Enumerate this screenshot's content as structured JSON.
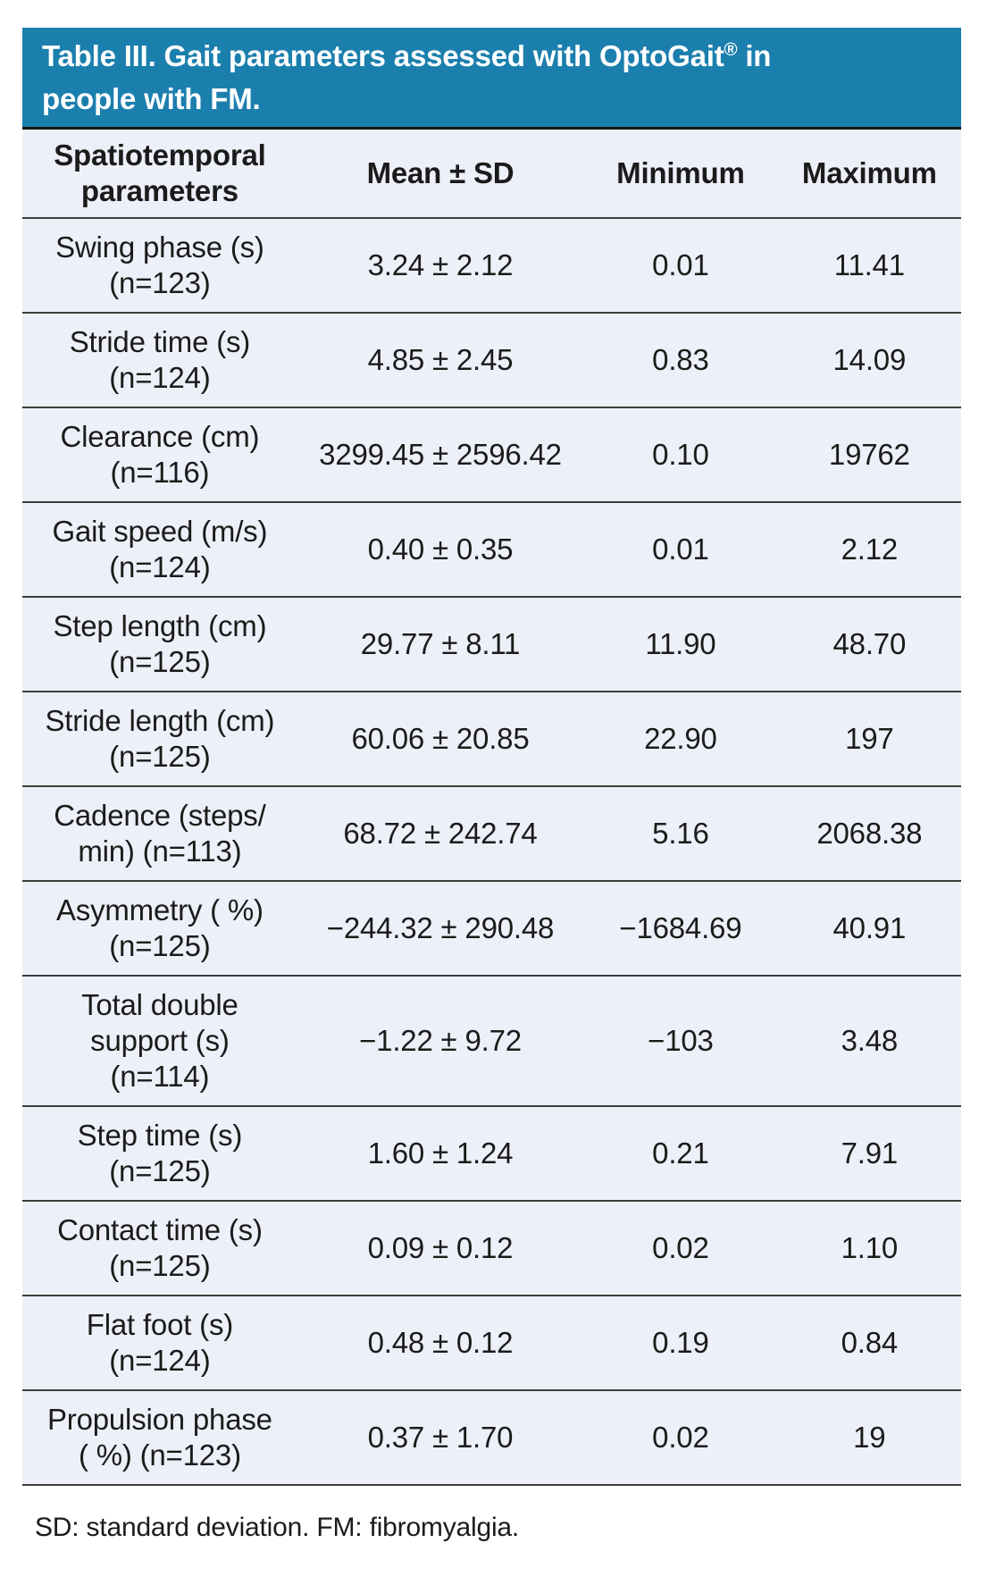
{
  "colors": {
    "title_bg": "#1b7fae",
    "title_text": "#ffffff",
    "row_bg": "#edf0f8",
    "rule": "#3e3e3e",
    "text": "#1b1b1b"
  },
  "title": {
    "line1_pre": "Table III. Gait parameters assessed with OptoGait",
    "line1_sup": "®",
    "line1_post": " in",
    "line2": "people with FM."
  },
  "table": {
    "columns": {
      "parameter": "Spatiotemporal\nparameters",
      "mean_sd": "Mean ± SD",
      "minimum": "Minimum",
      "maximum": "Maximum"
    },
    "rows": [
      {
        "parameter": "Swing phase (s)\n(n=123)",
        "mean_sd": "3.24 ± 2.12",
        "minimum": "0.01",
        "maximum": "11.41"
      },
      {
        "parameter": "Stride time (s)\n(n=124)",
        "mean_sd": "4.85 ± 2.45",
        "minimum": "0.83",
        "maximum": "14.09"
      },
      {
        "parameter": "Clearance (cm)\n(n=116)",
        "mean_sd": "3299.45 ± 2596.42",
        "minimum": "0.10",
        "maximum": "19762"
      },
      {
        "parameter": "Gait speed (m/s)\n(n=124)",
        "mean_sd": "0.40 ± 0.35",
        "minimum": "0.01",
        "maximum": "2.12"
      },
      {
        "parameter": "Step length (cm)\n(n=125)",
        "mean_sd": "29.77 ± 8.11",
        "minimum": "11.90",
        "maximum": "48.70"
      },
      {
        "parameter": "Stride length (cm)\n(n=125)",
        "mean_sd": "60.06 ± 20.85",
        "minimum": "22.90",
        "maximum": "197"
      },
      {
        "parameter": "Cadence (steps/\nmin) (n=113)",
        "mean_sd": "68.72 ± 242.74",
        "minimum": "5.16",
        "maximum": "2068.38"
      },
      {
        "parameter": "Asymmetry ( %)\n(n=125)",
        "mean_sd": "−244.32 ± 290.48",
        "minimum": "−1684.69",
        "maximum": "40.91"
      },
      {
        "parameter": "Total double\nsupport (s)\n(n=114)",
        "mean_sd": "−1.22 ± 9.72",
        "minimum": "−103",
        "maximum": "3.48"
      },
      {
        "parameter": "Step time (s)\n(n=125)",
        "mean_sd": "1.60 ± 1.24",
        "minimum": "0.21",
        "maximum": "7.91"
      },
      {
        "parameter": "Contact time (s)\n(n=125)",
        "mean_sd": "0.09 ± 0.12",
        "minimum": "0.02",
        "maximum": "1.10"
      },
      {
        "parameter": "Flat foot (s)\n(n=124)",
        "mean_sd": "0.48 ± 0.12",
        "minimum": "0.19",
        "maximum": "0.84"
      },
      {
        "parameter": "Propulsion phase\n( %) (n=123)",
        "mean_sd": "0.37 ± 1.70",
        "minimum": "0.02",
        "maximum": "19"
      }
    ]
  },
  "footnote": "SD: standard deviation. FM: fibromyalgia."
}
